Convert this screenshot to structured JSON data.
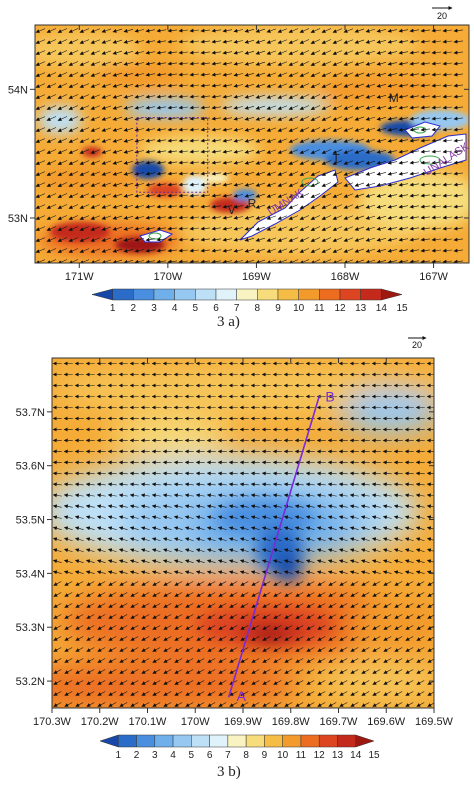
{
  "chart_data": [
    {
      "type": "heatmap",
      "panel": "3 a)",
      "caption": "3 a)",
      "reference_vector": "20",
      "xlim": [
        -171.5,
        -166.6
      ],
      "ylim": [
        52.65,
        54.5
      ],
      "x_ticks": [
        {
          "value": -171,
          "label": "171W"
        },
        {
          "value": -170,
          "label": "170W"
        },
        {
          "value": -169,
          "label": "169W"
        },
        {
          "value": -168,
          "label": "168W"
        },
        {
          "value": -167,
          "label": "167W"
        }
      ],
      "y_ticks": [
        {
          "value": 54,
          "label": "54N"
        },
        {
          "value": 53,
          "label": "53N"
        }
      ],
      "colorbar": {
        "labels": [
          "1",
          "2",
          "3",
          "4",
          "5",
          "6",
          "7",
          "8",
          "9",
          "10",
          "11",
          "12",
          "13",
          "14",
          "15"
        ],
        "colors": [
          "#1748a8",
          "#2a6cc8",
          "#4a8ee0",
          "#6fafea",
          "#96c8f2",
          "#bde0f6",
          "#e0f2fa",
          "#f8f3c0",
          "#f6dc7a",
          "#f5bd45",
          "#f39a2c",
          "#ec6d20",
          "#dc4520",
          "#c42a1c",
          "#9e1812"
        ]
      },
      "annotations": [
        {
          "text": "M",
          "x": -167.45,
          "y": 53.9
        },
        {
          "text": "T",
          "x": -168.1,
          "y": 53.43
        },
        {
          "text": "V",
          "x": -169.28,
          "y": 53.03
        },
        {
          "text": "R",
          "x": -169.05,
          "y": 53.08
        },
        {
          "text": "UMNAK",
          "x": -168.65,
          "y": 53.1,
          "rotate": -33
        },
        {
          "text": "UNALASKA",
          "x": -166.8,
          "y": 53.45,
          "rotate": -33
        }
      ],
      "subdomain_box": {
        "x": [
          -170.35,
          -169.55
        ],
        "y": [
          53.2,
          53.78
        ]
      }
    },
    {
      "type": "heatmap",
      "panel": "3 b)",
      "caption": "3 b)",
      "reference_vector": "20",
      "xlim": [
        -170.3,
        -169.5
      ],
      "ylim": [
        53.15,
        53.8
      ],
      "x_ticks": [
        {
          "value": -170.3,
          "label": "170.3W"
        },
        {
          "value": -170.2,
          "label": "170.2W"
        },
        {
          "value": -170.1,
          "label": "170.1W"
        },
        {
          "value": -170.0,
          "label": "170W"
        },
        {
          "value": -169.9,
          "label": "169.9W"
        },
        {
          "value": -169.8,
          "label": "169.8W"
        },
        {
          "value": -169.7,
          "label": "169.7W"
        },
        {
          "value": -169.6,
          "label": "169.6W"
        },
        {
          "value": -169.5,
          "label": "169.5W"
        }
      ],
      "y_ticks": [
        {
          "value": 53.2,
          "label": "53.2N"
        },
        {
          "value": 53.3,
          "label": "53.3N"
        },
        {
          "value": 53.4,
          "label": "53.4N"
        },
        {
          "value": 53.5,
          "label": "53.5N"
        },
        {
          "value": 53.6,
          "label": "53.6N"
        },
        {
          "value": 53.7,
          "label": "53.7N"
        }
      ],
      "colorbar": {
        "labels": [
          "1",
          "2",
          "3",
          "4",
          "5",
          "6",
          "7",
          "8",
          "9",
          "10",
          "11",
          "12",
          "13",
          "14",
          "15"
        ],
        "colors": [
          "#1748a8",
          "#2a6cc8",
          "#4a8ee0",
          "#6fafea",
          "#96c8f2",
          "#bde0f6",
          "#e0f2fa",
          "#f8f3c0",
          "#f6dc7a",
          "#f5bd45",
          "#f39a2c",
          "#ec6d20",
          "#dc4520",
          "#c42a1c",
          "#9e1812"
        ]
      },
      "cross_section": {
        "start": {
          "label": "A",
          "x": -169.93,
          "y": 53.17
        },
        "end": {
          "label": "B",
          "x": -169.74,
          "y": 53.73
        }
      }
    }
  ]
}
